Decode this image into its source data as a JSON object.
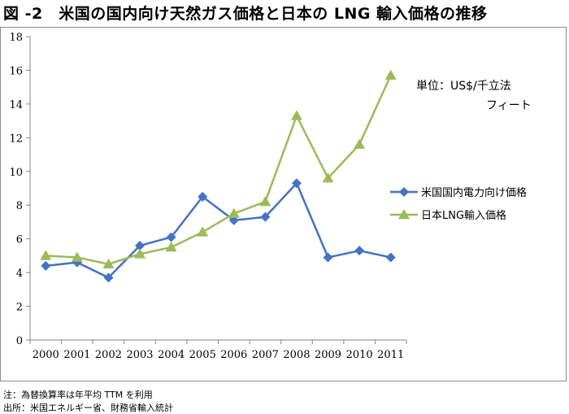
{
  "title": "図 -2　米国の国内向け天然ガス価格と日本の LNG 輸入価格の推移",
  "unit": {
    "line1": "単位：US$/千立法",
    "line2": "フィート"
  },
  "notes": [
    "注：為替換算率は年平均 TTM を利用",
    "出所：米国エネルギー省、財務省輸入統計"
  ],
  "colors": {
    "series1": "#4472c4",
    "series2": "#9bbb59",
    "axis": "#868686"
  },
  "chart_data": {
    "type": "line",
    "categories": [
      "2000",
      "2001",
      "2002",
      "2003",
      "2004",
      "2005",
      "2006",
      "2007",
      "2008",
      "2009",
      "2010",
      "2011"
    ],
    "ylim": [
      0,
      18
    ],
    "yticks": [
      0,
      2,
      4,
      6,
      8,
      10,
      12,
      14,
      16,
      18
    ],
    "grid": false,
    "legend": "right",
    "series": [
      {
        "name": "米国国内電力向け価格",
        "marker": "diamond",
        "values": [
          4.4,
          4.6,
          3.7,
          5.6,
          6.1,
          8.5,
          7.1,
          7.3,
          9.3,
          4.9,
          5.3,
          4.9
        ]
      },
      {
        "name": "日本LNG輸入価格",
        "marker": "triangle",
        "values": [
          5.0,
          4.9,
          4.5,
          5.1,
          5.5,
          6.4,
          7.5,
          8.2,
          13.3,
          9.6,
          11.6,
          15.7
        ]
      }
    ]
  }
}
